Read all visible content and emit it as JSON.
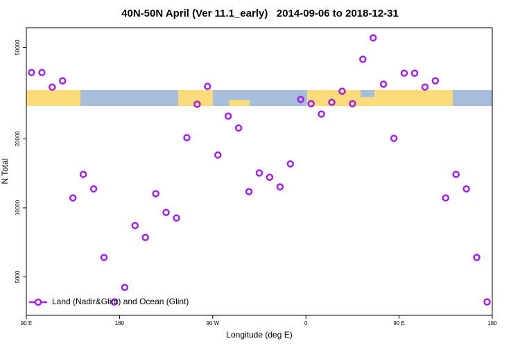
{
  "chart_data": {
    "type": "scatter",
    "title": "40N-50N April (Ver 11.1_early)   2014-09-06 to 2018-12-31",
    "xlabel": "Longitude (deg E)",
    "ylabel": "N Total",
    "xlim": [
      90,
      540
    ],
    "xticks": [
      {
        "value": 90,
        "label": "90 E"
      },
      {
        "value": 180,
        "label": "180"
      },
      {
        "value": 270,
        "label": "90 W"
      },
      {
        "value": 360,
        "label": "0"
      },
      {
        "value": 450,
        "label": "90 E"
      },
      {
        "value": 540,
        "label": "180"
      }
    ],
    "ylim": [
      3400,
      61000
    ],
    "ylog": true,
    "yticks": [
      5000,
      10000,
      20000,
      50000
    ],
    "legend": "bottomleft",
    "series": [
      {
        "name": "Land (Nadir&Glint) and Ocean (Glint)",
        "color": "#a020f0",
        "x": [
          95,
          105,
          115,
          125,
          135,
          145,
          155,
          165,
          175,
          185,
          195,
          205,
          215,
          225,
          235,
          245,
          255,
          265,
          275,
          285,
          295,
          305,
          315,
          325,
          335,
          345,
          355,
          365,
          375,
          385,
          395,
          405,
          415,
          425,
          435,
          445,
          455,
          465,
          475,
          485,
          495,
          505,
          515,
          525,
          535
        ],
        "values": [
          38900,
          38900,
          33600,
          35800,
          11050,
          14000,
          12100,
          6080,
          3890,
          4500,
          8370,
          7430,
          11530,
          9550,
          9030,
          20230,
          28300,
          33850,
          17000,
          25100,
          22300,
          11770,
          14200,
          13600,
          12350,
          15550,
          29700,
          28450,
          25640,
          28860,
          32250,
          28450,
          44450,
          55100,
          34600,
          20100,
          38650,
          38650,
          33600,
          35800,
          11050,
          14000,
          12100,
          6080,
          3890
        ]
      }
    ]
  }
}
